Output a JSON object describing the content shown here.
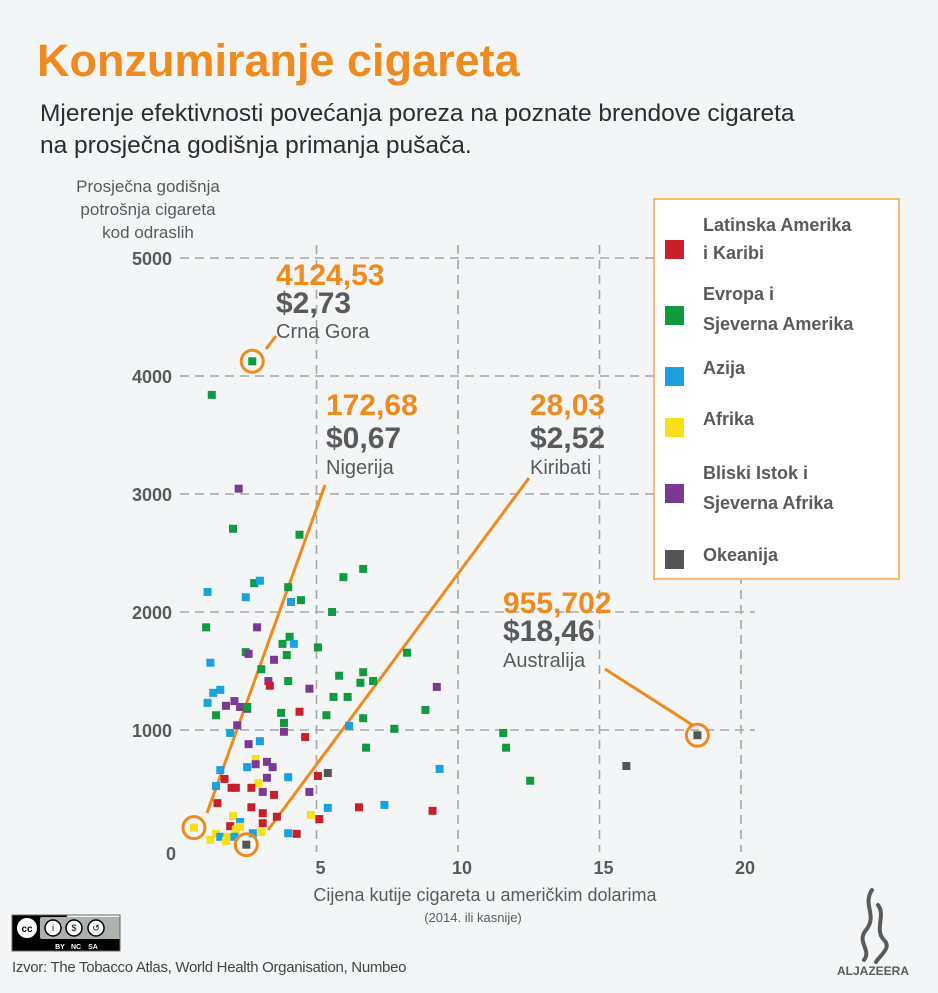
{
  "title": "Konzumiranje cigareta",
  "subtitle": [
    "Mjerenje efektivnosti povećanja poreza na poznate brendove cigareta",
    "na prosječna godišnja primanja pušača."
  ],
  "source": "Izvor: The Tobacco Atlas, World Health Organisation, Numbeo",
  "license": {
    "label": "cc BY NC SA",
    "parts": [
      "BY",
      "NC",
      "SA"
    ]
  },
  "logo": "ALJAZEERA",
  "chart_data": {
    "type": "scatter",
    "title": "Konzumiranje cigareta",
    "ylabel": [
      "Prosječna godišnja",
      "potrošnja cigareta",
      "kod odraslih"
    ],
    "xlabel": "Cijena kutije cigareta u američkim dolarima",
    "xlabel_note": "(2014. ili kasnije)",
    "xlim": [
      0,
      20
    ],
    "ylim": [
      0,
      5000
    ],
    "xticks": [
      5,
      10,
      15,
      20
    ],
    "yticks": [
      0,
      1000,
      2000,
      3000,
      4000,
      5000
    ],
    "xtick_labels": [
      "5",
      "10",
      "15",
      "20"
    ],
    "ytick_labels": [
      "0",
      "1000",
      "2000",
      "3000",
      "4000",
      "5000"
    ],
    "grid": true,
    "legend_position": "top-right",
    "regions": [
      {
        "code": "L",
        "name": [
          "Latinska Amerika",
          "i Karibi"
        ],
        "color": "#c8202a"
      },
      {
        "code": "E",
        "name": [
          "Evropa i",
          "Sjeverna Amerika"
        ],
        "color": "#0f9a3e"
      },
      {
        "code": "A",
        "name": [
          "Azija"
        ],
        "color": "#1aa1e0"
      },
      {
        "code": "F",
        "name": [
          "Afrika"
        ],
        "color": "#f7e01a"
      },
      {
        "code": "M",
        "name": [
          "Bliski Istok i",
          "Sjeverna Afrika"
        ],
        "color": "#7a3a93"
      },
      {
        "code": "O",
        "name": [
          "Okeanija"
        ],
        "color": "#555555"
      }
    ],
    "highlight_color": "#ee8a1e",
    "annotations": [
      {
        "id": "montenegro",
        "value": "4124,53",
        "price": "$2,73",
        "country": "Crna Gora",
        "x": 2.73,
        "y": 4124.53
      },
      {
        "id": "nigeria",
        "value": "172,68",
        "price": "$0,67",
        "country": "Nigerija",
        "x": 0.67,
        "y": 172.68
      },
      {
        "id": "kiribati",
        "value": "28,03",
        "price": "$2,52",
        "country": "Kiribati",
        "x": 2.52,
        "y": 28.03
      },
      {
        "id": "australia",
        "value": "955,702",
        "price": "$18,46",
        "country": "Australija",
        "x": 18.46,
        "y": 955.702
      }
    ],
    "points": [
      [
        2.73,
        4124.53,
        "E"
      ],
      [
        0.67,
        172.68,
        "F"
      ],
      [
        2.52,
        28.03,
        "O"
      ],
      [
        18.46,
        955.7,
        "O"
      ],
      [
        1.1,
        1870,
        "E"
      ],
      [
        2.9,
        1870,
        "M"
      ],
      [
        4.05,
        1790,
        "E"
      ],
      [
        3.8,
        1730,
        "E"
      ],
      [
        4.2,
        1730,
        "A"
      ],
      [
        5.05,
        1700,
        "E"
      ],
      [
        2.5,
        1660,
        "E"
      ],
      [
        2.6,
        1645,
        "M"
      ],
      [
        3.95,
        1635,
        "E"
      ],
      [
        3.5,
        1595,
        "M"
      ],
      [
        1.25,
        1570,
        "A"
      ],
      [
        3.05,
        1515,
        "E"
      ],
      [
        8.2,
        1655,
        "E"
      ],
      [
        5.8,
        1460,
        "E"
      ],
      [
        6.65,
        1490,
        "E"
      ],
      [
        6.55,
        1400,
        "E"
      ],
      [
        7.0,
        1415,
        "E"
      ],
      [
        9.25,
        1365,
        "M"
      ],
      [
        3.3,
        1415,
        "M"
      ],
      [
        3.35,
        1375,
        "L"
      ],
      [
        4.0,
        1415,
        "E"
      ],
      [
        4.75,
        1350,
        "M"
      ],
      [
        1.35,
        1315,
        "A"
      ],
      [
        1.6,
        1340,
        "A"
      ],
      [
        1.15,
        1230,
        "A"
      ],
      [
        2.1,
        1245,
        "M"
      ],
      [
        1.8,
        1205,
        "M"
      ],
      [
        2.3,
        1195,
        "M"
      ],
      [
        2.55,
        1180,
        "M"
      ],
      [
        2.55,
        1195,
        "E"
      ],
      [
        1.45,
        1125,
        "E"
      ],
      [
        3.75,
        1145,
        "E"
      ],
      [
        3.85,
        1060,
        "E"
      ],
      [
        3.85,
        985,
        "M"
      ],
      [
        4.4,
        1155,
        "L"
      ],
      [
        5.6,
        1280,
        "E"
      ],
      [
        6.1,
        1280,
        "E"
      ],
      [
        5.35,
        1125,
        "E"
      ],
      [
        6.65,
        1100,
        "E"
      ],
      [
        8.85,
        1170,
        "E"
      ],
      [
        6.15,
        1035,
        "A"
      ],
      [
        7.75,
        1010,
        "E"
      ],
      [
        2.2,
        1040,
        "M"
      ],
      [
        1.95,
        975,
        "A"
      ],
      [
        4.6,
        940,
        "L"
      ],
      [
        6.75,
        850,
        "E"
      ],
      [
        2.6,
        880,
        "M"
      ],
      [
        3.0,
        905,
        "A"
      ],
      [
        2.85,
        755,
        "F"
      ],
      [
        2.85,
        710,
        "M"
      ],
      [
        3.25,
        730,
        "M"
      ],
      [
        3.45,
        685,
        "M"
      ],
      [
        2.55,
        685,
        "A"
      ],
      [
        1.6,
        660,
        "A"
      ],
      [
        1.75,
        585,
        "L"
      ],
      [
        4.0,
        600,
        "A"
      ],
      [
        5.05,
        610,
        "L"
      ],
      [
        5.4,
        635,
        "O"
      ],
      [
        9.35,
        670,
        "A"
      ],
      [
        3.25,
        595,
        "M"
      ],
      [
        2.95,
        550,
        "F"
      ],
      [
        1.45,
        525,
        "A"
      ],
      [
        2.0,
        510,
        "L"
      ],
      [
        2.15,
        510,
        "L"
      ],
      [
        2.7,
        510,
        "L"
      ],
      [
        3.1,
        475,
        "M"
      ],
      [
        3.5,
        450,
        "L"
      ],
      [
        4.75,
        475,
        "M"
      ],
      [
        1.5,
        380,
        "L"
      ],
      [
        2.7,
        345,
        "L"
      ],
      [
        5.4,
        340,
        "A"
      ],
      [
        6.5,
        345,
        "L"
      ],
      [
        7.4,
        365,
        "A"
      ],
      [
        9.1,
        315,
        "L"
      ],
      [
        3.1,
        295,
        "L"
      ],
      [
        2.05,
        270,
        "F"
      ],
      [
        3.6,
        265,
        "L"
      ],
      [
        4.8,
        280,
        "F"
      ],
      [
        5.1,
        245,
        "L"
      ],
      [
        3.1,
        210,
        "L"
      ],
      [
        2.3,
        220,
        "A"
      ],
      [
        1.95,
        185,
        "L"
      ],
      [
        2.3,
        180,
        "F"
      ],
      [
        2.15,
        155,
        "F"
      ],
      [
        2.75,
        125,
        "A"
      ],
      [
        3.05,
        135,
        "F"
      ],
      [
        4.0,
        125,
        "A"
      ],
      [
        4.3,
        120,
        "L"
      ],
      [
        1.45,
        120,
        "F"
      ],
      [
        1.25,
        70,
        "F"
      ],
      [
        1.6,
        95,
        "A"
      ],
      [
        1.8,
        60,
        "F"
      ],
      [
        1.85,
        95,
        "F"
      ],
      [
        2.1,
        95,
        "A"
      ],
      [
        1.3,
        3840,
        "E"
      ],
      [
        2.25,
        3045,
        "M"
      ],
      [
        2.05,
        2705,
        "E"
      ],
      [
        4.4,
        2655,
        "E"
      ],
      [
        1.15,
        2170,
        "A"
      ],
      [
        2.5,
        2125,
        "A"
      ],
      [
        2.8,
        2245,
        "E"
      ],
      [
        3.0,
        2265,
        "A"
      ],
      [
        4.0,
        2210,
        "E"
      ],
      [
        4.1,
        2085,
        "A"
      ],
      [
        4.45,
        2100,
        "E"
      ],
      [
        5.95,
        2295,
        "E"
      ],
      [
        6.65,
        2365,
        "E"
      ],
      [
        5.55,
        2000,
        "E"
      ],
      [
        11.6,
        975,
        "E"
      ],
      [
        11.7,
        850,
        "E"
      ],
      [
        12.55,
        570,
        "E"
      ],
      [
        15.95,
        695,
        "O"
      ]
    ]
  }
}
